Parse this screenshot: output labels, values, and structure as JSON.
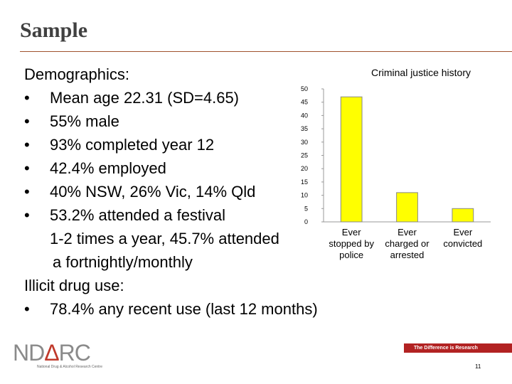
{
  "slide": {
    "title": "Sample"
  },
  "demographics": {
    "heading": "Demographics:",
    "bullets": [
      "Mean age 22.31 (SD=4.65)",
      "55% male",
      "93% completed year 12",
      "42.4% employed",
      "40% NSW, 26% Vic, 14% Qld",
      "53.2% attended a festival"
    ],
    "continuation_1": "1-2 times a year, 45.7% attended",
    "continuation_2": "a fortnightly/monthly"
  },
  "drug_use": {
    "heading": "Illicit drug use:",
    "bullets": [
      "78.4% any recent use (last 12 months)"
    ]
  },
  "bullet_char": "•",
  "colors": {
    "accent_rule": "#a0522d",
    "bar_fill": "#ffff00",
    "tag_bar": "#b22222"
  },
  "chart_data": {
    "type": "bar",
    "title": "Criminal justice history",
    "categories": [
      [
        "Ever",
        "stopped by",
        "police"
      ],
      [
        "Ever",
        "charged or",
        "arrested"
      ],
      [
        "Ever",
        "convicted"
      ]
    ],
    "values": [
      47,
      11,
      5
    ],
    "ylim": [
      0,
      50
    ],
    "yticks": [
      0,
      5,
      10,
      15,
      20,
      25,
      30,
      35,
      40,
      45,
      50
    ],
    "grid": false,
    "legend": "none"
  },
  "footer": {
    "logo_text_pre": "ND",
    "logo_text_a": "Δ",
    "logo_text_post": "RC",
    "logo_subtitle": "National Drug & Alcohol Research Centre",
    "tagline": "The Difference is Research",
    "page_number": "11"
  }
}
